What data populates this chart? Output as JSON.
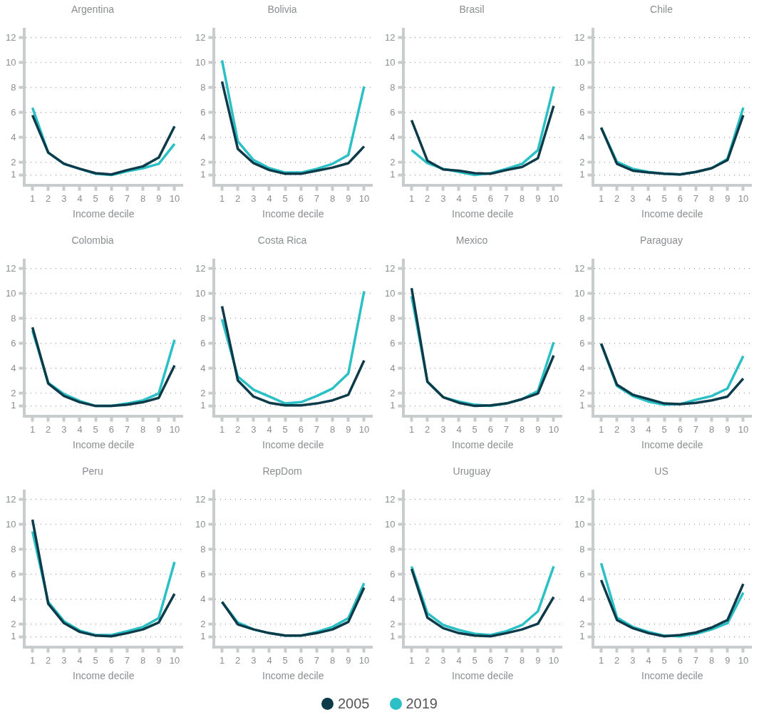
{
  "chart_data": [
    {
      "type": "line",
      "title": "Argentina",
      "xlabel": "Income decile",
      "categories": [
        "1",
        "2",
        "3",
        "4",
        "5",
        "6",
        "7",
        "8",
        "9",
        "10"
      ],
      "ylim": [
        0.2,
        12.7
      ],
      "yticks": [
        1,
        2,
        4,
        6,
        8,
        10,
        12
      ],
      "grid": "y",
      "series": [
        {
          "color": "#0d3b4a",
          "values": [
            5.8,
            2.8,
            1.9,
            1.5,
            1.15,
            1.05,
            1.4,
            1.7,
            2.4,
            4.9
          ]
        },
        {
          "color": "#2bbfc6",
          "values": [
            6.4,
            2.8,
            1.9,
            1.5,
            1.1,
            1.0,
            1.3,
            1.55,
            1.9,
            3.5
          ]
        }
      ]
    },
    {
      "type": "line",
      "title": "Bolivia",
      "xlabel": "Income decile",
      "categories": [
        "1",
        "2",
        "3",
        "4",
        "5",
        "6",
        "7",
        "8",
        "9",
        "10"
      ],
      "ylim": [
        0.2,
        12.7
      ],
      "yticks": [
        1,
        2,
        4,
        6,
        8,
        10,
        12
      ],
      "grid": "y",
      "series": [
        {
          "color": "#0d3b4a",
          "values": [
            8.5,
            3.1,
            1.95,
            1.4,
            1.1,
            1.1,
            1.35,
            1.6,
            1.95,
            3.3
          ]
        },
        {
          "color": "#2bbfc6",
          "values": [
            10.2,
            3.7,
            2.2,
            1.55,
            1.2,
            1.2,
            1.5,
            1.9,
            2.6,
            8.1
          ]
        }
      ]
    },
    {
      "type": "line",
      "title": "Brasil",
      "xlabel": "Income decile",
      "categories": [
        "1",
        "2",
        "3",
        "4",
        "5",
        "6",
        "7",
        "8",
        "9",
        "10"
      ],
      "ylim": [
        0.2,
        12.7
      ],
      "yticks": [
        1,
        2,
        4,
        6,
        8,
        10,
        12
      ],
      "grid": "y",
      "series": [
        {
          "color": "#0d3b4a",
          "values": [
            5.4,
            2.15,
            1.45,
            1.35,
            1.15,
            1.1,
            1.4,
            1.65,
            2.35,
            6.55
          ]
        },
        {
          "color": "#2bbfc6",
          "values": [
            3.0,
            1.95,
            1.5,
            1.25,
            1.0,
            1.15,
            1.5,
            1.9,
            3.0,
            8.1
          ]
        }
      ]
    },
    {
      "type": "line",
      "title": "Chile",
      "xlabel": "Income decile",
      "categories": [
        "1",
        "2",
        "3",
        "4",
        "5",
        "6",
        "7",
        "8",
        "9",
        "10"
      ],
      "ylim": [
        0.2,
        12.7
      ],
      "yticks": [
        1,
        2,
        4,
        6,
        8,
        10,
        12
      ],
      "grid": "y",
      "series": [
        {
          "color": "#0d3b4a",
          "values": [
            4.8,
            1.9,
            1.35,
            1.2,
            1.1,
            1.05,
            1.25,
            1.55,
            2.2,
            5.8
          ]
        },
        {
          "color": "#2bbfc6",
          "values": [
            4.8,
            2.05,
            1.5,
            1.25,
            1.1,
            1.05,
            1.25,
            1.55,
            2.3,
            6.4
          ]
        }
      ]
    },
    {
      "type": "line",
      "title": "Colombia",
      "xlabel": "Income decile",
      "categories": [
        "1",
        "2",
        "3",
        "4",
        "5",
        "6",
        "7",
        "8",
        "9",
        "10"
      ],
      "ylim": [
        0.2,
        12.7
      ],
      "yticks": [
        1,
        2,
        4,
        6,
        8,
        10,
        12
      ],
      "grid": "y",
      "series": [
        {
          "color": "#0d3b4a",
          "values": [
            7.3,
            2.8,
            1.8,
            1.3,
            1.0,
            1.0,
            1.1,
            1.3,
            1.65,
            4.25
          ]
        },
        {
          "color": "#2bbfc6",
          "values": [
            7.05,
            2.85,
            1.95,
            1.4,
            1.0,
            1.0,
            1.2,
            1.45,
            2.0,
            6.3
          ]
        }
      ]
    },
    {
      "type": "line",
      "title": "Costa Rica",
      "xlabel": "Income decile",
      "categories": [
        "1",
        "2",
        "3",
        "4",
        "5",
        "6",
        "7",
        "8",
        "9",
        "10"
      ],
      "ylim": [
        0.2,
        12.7
      ],
      "yticks": [
        1,
        2,
        4,
        6,
        8,
        10,
        12
      ],
      "grid": "y",
      "series": [
        {
          "color": "#0d3b4a",
          "values": [
            9.0,
            3.05,
            1.75,
            1.25,
            1.05,
            1.05,
            1.2,
            1.45,
            1.9,
            4.65
          ]
        },
        {
          "color": "#2bbfc6",
          "values": [
            7.95,
            3.35,
            2.3,
            1.75,
            1.2,
            1.3,
            1.8,
            2.4,
            3.6,
            10.2
          ]
        }
      ]
    },
    {
      "type": "line",
      "title": "Mexico",
      "xlabel": "Income decile",
      "categories": [
        "1",
        "2",
        "3",
        "4",
        "5",
        "6",
        "7",
        "8",
        "9",
        "10"
      ],
      "ylim": [
        0.2,
        12.7
      ],
      "yticks": [
        1,
        2,
        4,
        6,
        8,
        10,
        12
      ],
      "grid": "y",
      "series": [
        {
          "color": "#0d3b4a",
          "values": [
            10.45,
            2.95,
            1.7,
            1.25,
            1.0,
            1.05,
            1.2,
            1.55,
            2.0,
            5.05
          ]
        },
        {
          "color": "#2bbfc6",
          "values": [
            9.8,
            2.95,
            1.7,
            1.35,
            1.1,
            1.0,
            1.2,
            1.55,
            2.2,
            6.1
          ]
        }
      ]
    },
    {
      "type": "line",
      "title": "Paraguay",
      "xlabel": "Income decile",
      "categories": [
        "1",
        "2",
        "3",
        "4",
        "5",
        "6",
        "7",
        "8",
        "9",
        "10"
      ],
      "ylim": [
        0.2,
        12.7
      ],
      "yticks": [
        1,
        2,
        4,
        6,
        8,
        10,
        12
      ],
      "grid": "y",
      "series": [
        {
          "color": "#0d3b4a",
          "values": [
            6.0,
            2.7,
            1.9,
            1.55,
            1.2,
            1.15,
            1.25,
            1.45,
            1.75,
            3.2
          ]
        },
        {
          "color": "#2bbfc6",
          "values": [
            6.0,
            2.6,
            1.8,
            1.35,
            1.1,
            1.15,
            1.5,
            1.8,
            2.4,
            5.0
          ]
        }
      ]
    },
    {
      "type": "line",
      "title": "Peru",
      "xlabel": "Income decile",
      "categories": [
        "1",
        "2",
        "3",
        "4",
        "5",
        "6",
        "7",
        "8",
        "9",
        "10"
      ],
      "ylim": [
        0.2,
        12.7
      ],
      "yticks": [
        1,
        2,
        4,
        6,
        8,
        10,
        12
      ],
      "grid": "y",
      "series": [
        {
          "color": "#0d3b4a",
          "values": [
            10.4,
            3.65,
            2.1,
            1.4,
            1.1,
            1.05,
            1.3,
            1.6,
            2.15,
            4.45
          ]
        },
        {
          "color": "#2bbfc6",
          "values": [
            9.45,
            3.8,
            2.25,
            1.5,
            1.15,
            1.15,
            1.45,
            1.8,
            2.5,
            7.0
          ]
        }
      ]
    },
    {
      "type": "line",
      "title": "RepDom",
      "xlabel": "Income decile",
      "categories": [
        "1",
        "2",
        "3",
        "4",
        "5",
        "6",
        "7",
        "8",
        "9",
        "10"
      ],
      "ylim": [
        0.2,
        12.7
      ],
      "yticks": [
        1,
        2,
        4,
        6,
        8,
        10,
        12
      ],
      "grid": "y",
      "series": [
        {
          "color": "#0d3b4a",
          "values": [
            3.8,
            2.0,
            1.6,
            1.3,
            1.1,
            1.1,
            1.3,
            1.6,
            2.2,
            4.95
          ]
        },
        {
          "color": "#2bbfc6",
          "values": [
            3.8,
            2.15,
            1.6,
            1.3,
            1.1,
            1.1,
            1.4,
            1.8,
            2.5,
            5.3
          ]
        }
      ]
    },
    {
      "type": "line",
      "title": "Uruguay",
      "xlabel": "Income decile",
      "categories": [
        "1",
        "2",
        "3",
        "4",
        "5",
        "6",
        "7",
        "8",
        "9",
        "10"
      ],
      "ylim": [
        0.2,
        12.7
      ],
      "yticks": [
        1,
        2,
        4,
        6,
        8,
        10,
        12
      ],
      "grid": "y",
      "series": [
        {
          "color": "#0d3b4a",
          "values": [
            6.45,
            2.55,
            1.7,
            1.3,
            1.1,
            1.05,
            1.3,
            1.6,
            2.05,
            4.2
          ]
        },
        {
          "color": "#2bbfc6",
          "values": [
            6.65,
            2.9,
            1.95,
            1.55,
            1.25,
            1.15,
            1.45,
            1.95,
            3.05,
            6.65
          ]
        }
      ]
    },
    {
      "type": "line",
      "title": "US",
      "xlabel": "Income decile",
      "categories": [
        "1",
        "2",
        "3",
        "4",
        "5",
        "6",
        "7",
        "8",
        "9",
        "10"
      ],
      "ylim": [
        0.2,
        12.7
      ],
      "yticks": [
        1,
        2,
        4,
        6,
        8,
        10,
        12
      ],
      "grid": "y",
      "legend": "bottom",
      "series": [
        {
          "name": "2005",
          "color": "#0d3b4a",
          "values": [
            5.55,
            2.35,
            1.7,
            1.3,
            1.05,
            1.15,
            1.35,
            1.75,
            2.35,
            5.25
          ]
        },
        {
          "name": "2019",
          "color": "#2bbfc6",
          "values": [
            6.9,
            2.55,
            1.8,
            1.4,
            1.1,
            1.05,
            1.25,
            1.6,
            2.1,
            4.55
          ]
        }
      ]
    }
  ]
}
